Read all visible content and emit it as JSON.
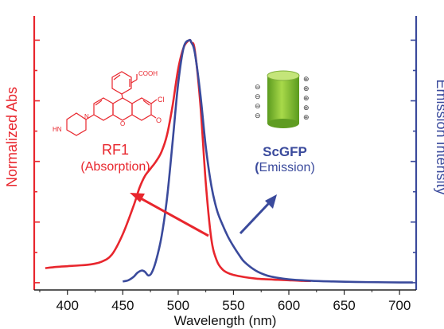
{
  "chart_data": {
    "type": "line",
    "xlabel": "Wavelength (nm)",
    "ylabel_left": "Normalized Abs",
    "ylabel_right": "Emission Intensity",
    "xlim": [
      370,
      715
    ],
    "xticks": [
      400,
      450,
      500,
      550,
      600,
      650,
      700
    ],
    "ylim": [
      -0.03,
      1.1
    ],
    "grid": false,
    "colors": {
      "absorption": "#e8262d",
      "emission": "#3a4a9c",
      "barrel": "#8cc63f",
      "axis": "#222222"
    },
    "series": [
      {
        "name": "RF1 (Absorption)",
        "color": "#e8262d",
        "x": [
          380,
          390,
          400,
          410,
          420,
          430,
          440,
          450,
          460,
          465,
          470,
          475,
          480,
          485,
          490,
          495,
          500,
          505,
          510,
          512,
          515,
          520,
          525,
          530,
          535,
          540,
          545,
          550,
          560,
          570,
          580,
          590,
          600,
          610,
          620
        ],
        "y": [
          0.06,
          0.065,
          0.068,
          0.071,
          0.075,
          0.085,
          0.115,
          0.2,
          0.32,
          0.39,
          0.44,
          0.47,
          0.5,
          0.54,
          0.61,
          0.73,
          0.88,
          0.97,
          1.0,
          0.99,
          0.96,
          0.74,
          0.41,
          0.18,
          0.09,
          0.055,
          0.04,
          0.032,
          0.023,
          0.017,
          0.014,
          0.012,
          0.01,
          0.008,
          0.007
        ]
      },
      {
        "name": "ScGFP (Emission)",
        "color": "#3a4a9c",
        "x": [
          450,
          455,
          460,
          463,
          467,
          470,
          473,
          476,
          480,
          485,
          490,
          495,
          500,
          505,
          510,
          512,
          515,
          520,
          525,
          530,
          535,
          540,
          545,
          550,
          555,
          560,
          570,
          580,
          590,
          600,
          620,
          640,
          660,
          680,
          700,
          712
        ],
        "y": [
          0.005,
          0.01,
          0.025,
          0.04,
          0.05,
          0.045,
          0.03,
          0.04,
          0.09,
          0.19,
          0.35,
          0.58,
          0.82,
          0.97,
          1.0,
          0.99,
          0.95,
          0.78,
          0.56,
          0.4,
          0.3,
          0.24,
          0.19,
          0.15,
          0.115,
          0.085,
          0.05,
          0.03,
          0.02,
          0.014,
          0.008,
          0.005,
          0.003,
          0.002,
          0.001,
          0.001
        ]
      }
    ],
    "annotations": {
      "rf1_title": "RF1",
      "rf1_subtitle": "(Absorption)",
      "scgfp_title": "ScGFP",
      "scgfp_subtitle_open": "(",
      "scgfp_subtitle_rest": "Emission)",
      "cooh": "COOH",
      "cl": "Cl",
      "o": "O",
      "hn": "HN",
      "n": "N",
      "charge_minus": "⊖",
      "charge_plus": "⊕"
    }
  }
}
